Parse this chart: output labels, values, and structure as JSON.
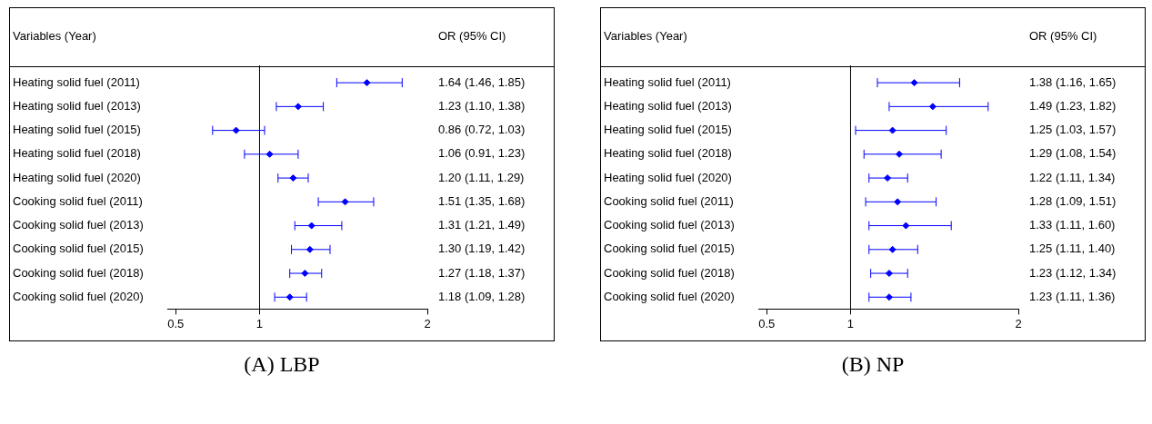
{
  "chart_data": [
    {
      "type": "scatter",
      "orientation": "horizontal",
      "title": "(A) LBP",
      "ylabel": "Variables (Year)",
      "annotations": [
        "OR (95% CI)"
      ],
      "categories": [
        "Heating solid fuel (2011)",
        "Heating solid fuel (2013)",
        "Heating solid fuel (2015)",
        "Heating solid fuel (2018)",
        "Heating solid fuel (2020)",
        "Cooking solid fuel (2011)",
        "Cooking solid fuel (2013)",
        "Cooking solid fuel (2015)",
        "Cooking solid fuel (2018)",
        "Cooking solid fuel (2020)"
      ],
      "values": [
        1.64,
        1.23,
        0.86,
        1.06,
        1.2,
        1.51,
        1.31,
        1.3,
        1.27,
        1.18
      ],
      "errors": [
        [
          1.46,
          1.85
        ],
        [
          1.1,
          1.38
        ],
        [
          0.72,
          1.03
        ],
        [
          0.91,
          1.23
        ],
        [
          1.11,
          1.29
        ],
        [
          1.35,
          1.68
        ],
        [
          1.21,
          1.49
        ],
        [
          1.19,
          1.42
        ],
        [
          1.18,
          1.37
        ],
        [
          1.09,
          1.28
        ]
      ],
      "value_labels": [
        "1.64 (1.46, 1.85)",
        "1.23 (1.10, 1.38)",
        "0.86 (0.72, 1.03)",
        "1.06 (0.91, 1.23)",
        "1.20 (1.11, 1.29)",
        "1.51 (1.35, 1.68)",
        "1.31 (1.21, 1.49)",
        "1.30 (1.19, 1.42)",
        "1.27 (1.18, 1.37)",
        "1.18 (1.09, 1.28)"
      ],
      "color": "#0000ff",
      "marker": "diamond",
      "xlim": [
        0.45,
        2.0
      ],
      "xticks": [
        0.5,
        1,
        2
      ],
      "ref_lines": [
        {
          "axis": "x",
          "value": 1,
          "color": "#000000"
        }
      ]
    },
    {
      "type": "scatter",
      "orientation": "horizontal",
      "title": "(B) NP",
      "ylabel": "Variables (Year)",
      "annotations": [
        "OR (95% CI)"
      ],
      "categories": [
        "Heating solid fuel (2011)",
        "Heating solid fuel (2013)",
        "Heating solid fuel (2015)",
        "Heating solid fuel (2018)",
        "Heating solid fuel (2020)",
        "Cooking solid fuel (2011)",
        "Cooking solid fuel (2013)",
        "Cooking solid fuel (2015)",
        "Cooking solid fuel (2018)",
        "Cooking solid fuel (2020)"
      ],
      "values": [
        1.38,
        1.49,
        1.25,
        1.29,
        1.22,
        1.28,
        1.33,
        1.25,
        1.23,
        1.23
      ],
      "errors": [
        [
          1.16,
          1.65
        ],
        [
          1.23,
          1.82
        ],
        [
          1.03,
          1.57
        ],
        [
          1.08,
          1.54
        ],
        [
          1.11,
          1.34
        ],
        [
          1.09,
          1.51
        ],
        [
          1.11,
          1.6
        ],
        [
          1.11,
          1.4
        ],
        [
          1.12,
          1.34
        ],
        [
          1.11,
          1.36
        ]
      ],
      "value_labels": [
        "1.38 (1.16, 1.65)",
        "1.49 (1.23, 1.82)",
        "1.25 (1.03, 1.57)",
        "1.29 (1.08, 1.54)",
        "1.22 (1.11, 1.34)",
        "1.28 (1.09, 1.51)",
        "1.33 (1.11, 1.60)",
        "1.25 (1.11, 1.40)",
        "1.23 (1.12, 1.34)",
        "1.23 (1.11, 1.36)"
      ],
      "color": "#0000ff",
      "marker": "diamond",
      "xlim": [
        0.45,
        2.0
      ],
      "xticks": [
        0.5,
        1,
        2
      ],
      "ref_lines": [
        {
          "axis": "x",
          "value": 1,
          "color": "#000000"
        }
      ]
    }
  ]
}
